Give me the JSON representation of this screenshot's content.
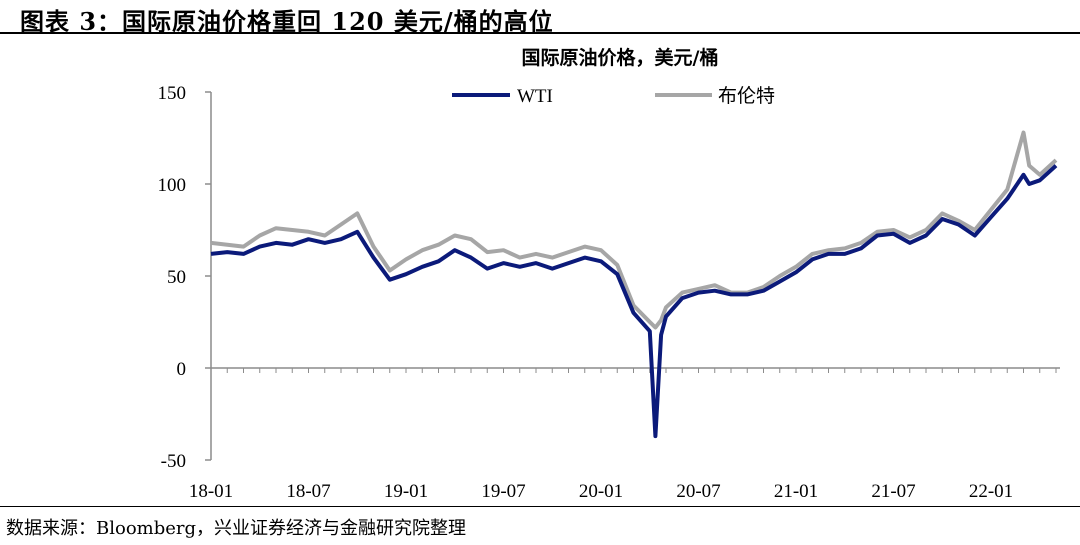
{
  "figure_title": "图表 3：国际原油价格重回 120 美元/桶的高位",
  "source_note": "数据来源：Bloomberg，兴业证券经济与金融研究院整理",
  "chart_data": {
    "type": "line",
    "title": "国际原油价格，美元/桶",
    "xlabel": "",
    "ylabel": "",
    "ylim": [
      -50,
      150
    ],
    "yticks": [
      -50,
      0,
      50,
      100,
      150
    ],
    "xticks": [
      "18-01",
      "18-07",
      "19-01",
      "19-07",
      "20-01",
      "20-07",
      "21-01",
      "21-07",
      "22-01"
    ],
    "legend_position": "top",
    "grid": false,
    "x": [
      "18-01",
      "18-02",
      "18-03",
      "18-04",
      "18-05",
      "18-06",
      "18-07",
      "18-08",
      "18-09",
      "18-10",
      "18-11",
      "18-12",
      "19-01",
      "19-02",
      "19-03",
      "19-04",
      "19-05",
      "19-06",
      "19-07",
      "19-08",
      "19-09",
      "19-10",
      "19-11",
      "19-12",
      "20-01",
      "20-02",
      "20-03",
      "20-04a",
      "20-04b",
      "20-04c",
      "20-05",
      "20-06",
      "20-07",
      "20-08",
      "20-09",
      "20-10",
      "20-11",
      "20-12",
      "21-01",
      "21-02",
      "21-03",
      "21-04",
      "21-05",
      "21-06",
      "21-07",
      "21-08",
      "21-09",
      "21-10",
      "21-11",
      "21-12",
      "22-01",
      "22-02",
      "22-03a",
      "22-03b",
      "22-04",
      "22-05",
      "22-06"
    ],
    "series": [
      {
        "name": "WTI",
        "color": "#0b1a7a",
        "values": [
          62,
          63,
          62,
          66,
          68,
          67,
          70,
          68,
          70,
          74,
          60,
          48,
          51,
          55,
          58,
          64,
          60,
          54,
          57,
          55,
          57,
          54,
          57,
          60,
          58,
          51,
          30,
          20,
          -37,
          18,
          28,
          38,
          41,
          42,
          40,
          40,
          42,
          47,
          52,
          59,
          62,
          62,
          65,
          72,
          73,
          68,
          72,
          81,
          78,
          72,
          82,
          92,
          105,
          100,
          102,
          110,
          118
        ]
      },
      {
        "name": "布伦特",
        "color": "#a6a6a6",
        "values": [
          68,
          67,
          66,
          72,
          76,
          75,
          74,
          72,
          78,
          84,
          66,
          53,
          59,
          64,
          67,
          72,
          70,
          63,
          64,
          60,
          62,
          60,
          63,
          66,
          64,
          56,
          34,
          25,
          22,
          26,
          33,
          41,
          43,
          45,
          41,
          41,
          44,
          50,
          55,
          62,
          64,
          65,
          68,
          74,
          75,
          71,
          75,
          84,
          80,
          75,
          86,
          97,
          128,
          110,
          105,
          113,
          122
        ]
      }
    ]
  }
}
